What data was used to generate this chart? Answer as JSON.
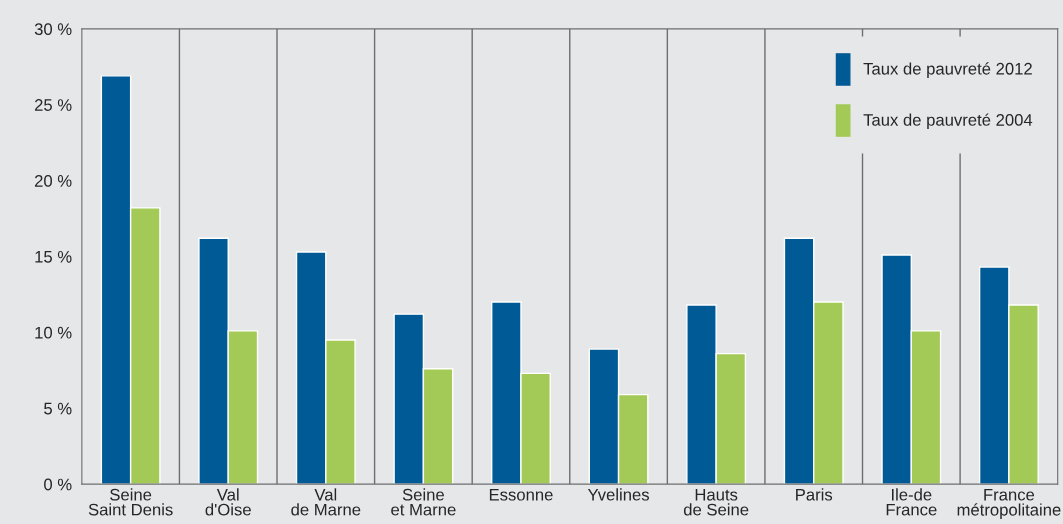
{
  "chart_data": {
    "type": "bar",
    "categories": [
      "Seine\nSaint Denis",
      "Val\nd'Oise",
      "Val\nde Marne",
      "Seine\net Marne",
      "Essonne",
      "Yvelines",
      "Hauts\nde Seine",
      "Paris",
      "Ile-de\nFrance",
      "France\nmétropolitaine"
    ],
    "series": [
      {
        "name": "Taux de pauvreté 2012",
        "color": "#005a96",
        "values": [
          26.9,
          16.2,
          15.3,
          11.2,
          12.0,
          8.9,
          11.8,
          16.2,
          15.1,
          14.3
        ]
      },
      {
        "name": "Taux de pauvreté 2004",
        "color": "#a3c956",
        "values": [
          18.2,
          10.1,
          9.5,
          7.6,
          7.3,
          5.9,
          8.6,
          12.0,
          10.1,
          11.8
        ]
      }
    ],
    "ylim": [
      0,
      30
    ],
    "yticks": [
      {
        "value": 0,
        "label": "0 %"
      },
      {
        "value": 5,
        "label": "5 %"
      },
      {
        "value": 10,
        "label": "10 %"
      },
      {
        "value": 15,
        "label": "15 %"
      },
      {
        "value": 20,
        "label": "20 %"
      },
      {
        "value": 25,
        "label": "25 %"
      },
      {
        "value": 30,
        "label": "30 %"
      }
    ],
    "grid": "x",
    "legend": "top right"
  }
}
